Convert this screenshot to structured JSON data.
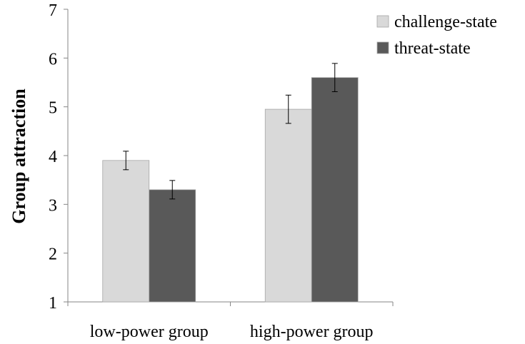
{
  "chart_data": {
    "type": "bar",
    "title": "",
    "xlabel": "",
    "ylabel": "Group attraction",
    "ylim": [
      1,
      7
    ],
    "yticks": [
      "1",
      "2",
      "3",
      "4",
      "5",
      "6",
      "7"
    ],
    "categories": [
      "low-power group",
      "high-power group"
    ],
    "series": [
      {
        "name": "challenge-state",
        "color": "#d9d9d9",
        "values": [
          3.9,
          4.95
        ],
        "errors": [
          0.19,
          0.29
        ]
      },
      {
        "name": "threat-state",
        "color": "#595959",
        "values": [
          3.3,
          5.6
        ],
        "errors": [
          0.19,
          0.29
        ]
      }
    ],
    "legend_position": "top-right",
    "grid": false
  }
}
